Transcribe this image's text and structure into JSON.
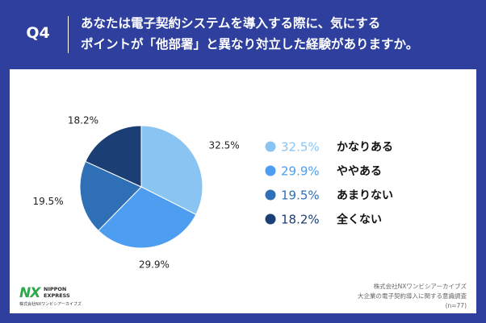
{
  "header": {
    "q_label": "Q4",
    "question_line1": "あなたは電子契約システムを導入する際に、気にする",
    "question_line2": "ポイントが「他部署」と異なり対立した経験がありますか。"
  },
  "chart_data": {
    "type": "pie",
    "start_angle": "12 o'clock",
    "direction": "clockwise",
    "slices": [
      {
        "label": "かなりある",
        "value": 32.5,
        "display": "32.5%",
        "color": "#8ac4f2"
      },
      {
        "label": "ややある",
        "value": 29.9,
        "display": "29.9%",
        "color": "#4d9df1"
      },
      {
        "label": "あまりない",
        "value": 19.5,
        "display": "19.5%",
        "color": "#2e6fb6"
      },
      {
        "label": "全くない",
        "value": 18.2,
        "display": "18.2%",
        "color": "#1b3f74"
      }
    ],
    "legend_placement": "right"
  },
  "footer": {
    "logo_mark": "NX",
    "logo_name_line1": "NIPPON",
    "logo_name_line2": "EXPRESS",
    "logo_sub": "株式会社NXワンビシアーカイブズ",
    "source_line1": "株式会社NXワンビシアーカイブズ",
    "source_line2": "大企業の電子契約導入に関する意識調査",
    "source_line3": "(n=77)"
  }
}
